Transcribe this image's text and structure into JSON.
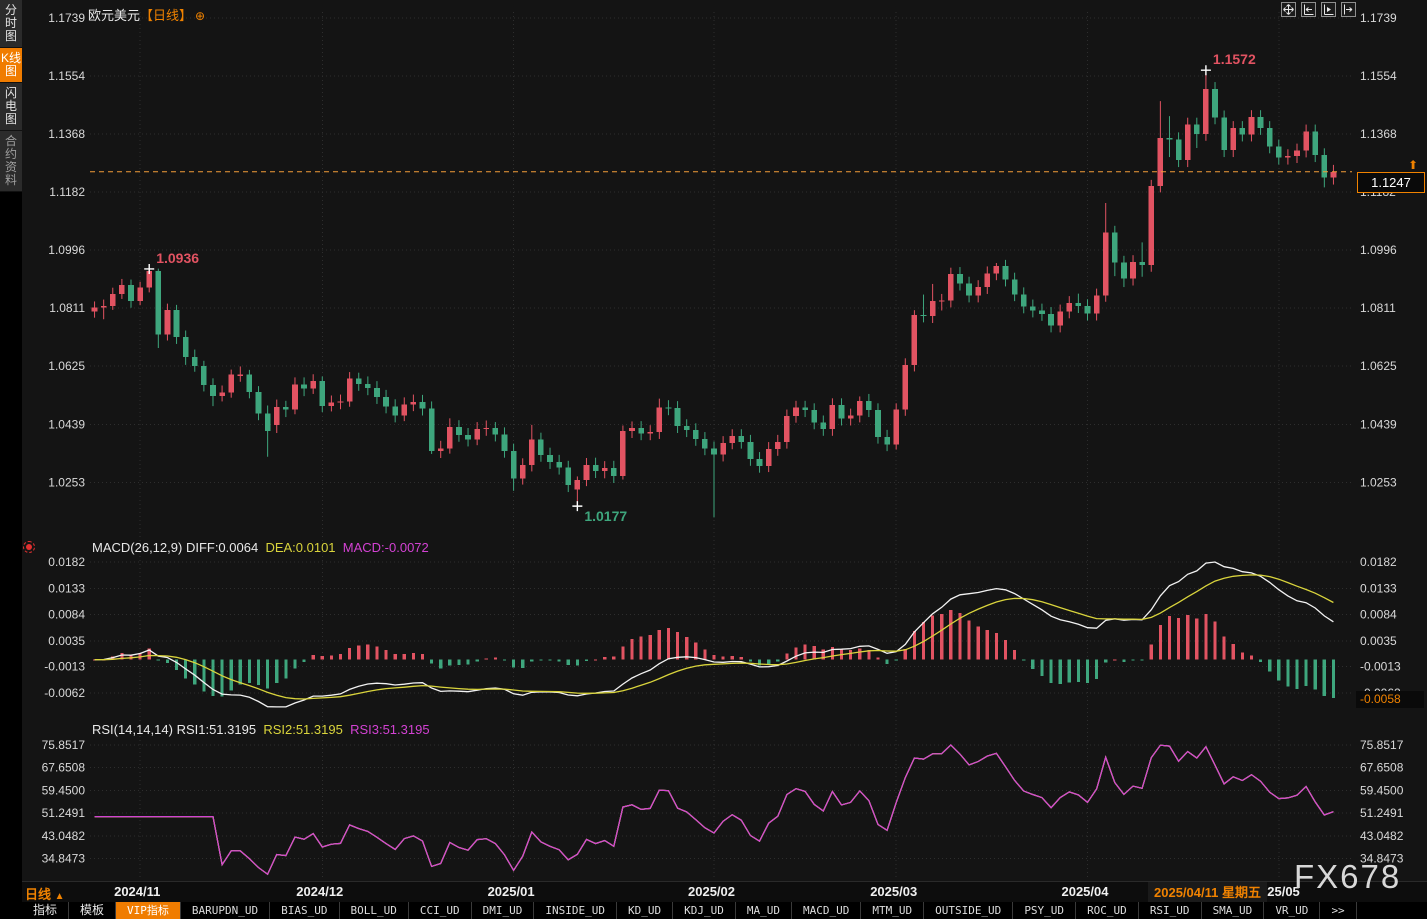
{
  "title": {
    "symbol": "欧元美元",
    "period_bracket": "【日线】",
    "icon_glyph": "⊕"
  },
  "sidebar": {
    "items": [
      {
        "label": "分时图",
        "selected": false
      },
      {
        "label": "K线图",
        "selected": true
      },
      {
        "label": "闪电图",
        "selected": false
      },
      {
        "label": "合约资料",
        "selected": false
      }
    ]
  },
  "top_icons": [
    "pan-crosshair-icon",
    "axis-compress-icon",
    "axis-cursor-icon",
    "axis-expand-icon"
  ],
  "price_box_value": "1.1247",
  "price_arrow_glyph": "⬆",
  "macd_box_value": "-0.0058",
  "watermark": "FX678",
  "bottom": {
    "period_label": "日线",
    "period_arrow": "▲",
    "highlight_date": "2025/04/11 星期五",
    "active_tab": "VIP指标",
    "tabs": [
      "指标",
      "模板",
      "VIP指标",
      "BARUPDN_UD",
      "BIAS_UD",
      "BOLL_UD",
      "CCI_UD",
      "DMI_UD",
      "INSIDE_UD",
      "KD_UD",
      "KDJ_UD",
      "MA_UD",
      "MACD_UD",
      "MTM_UD",
      "OUTSIDE_UD",
      "PSY_UD",
      "ROC_UD",
      "RSI_UD",
      "SMA_UD",
      "VR_UD",
      ">>"
    ]
  },
  "colors": {
    "up": "#e25362",
    "down": "#3ea67d",
    "accent": "#f08200",
    "price_line": "#f29b38",
    "diff_line": "#f2f2f2",
    "dea_line": "#d9d43c",
    "rsi_line": "#d342d3",
    "axis_text": "#d9d9d9",
    "grid": "#2e2e2e",
    "annotation_high": "#e25362",
    "annotation_low": "#3ea67d"
  },
  "chart_data": {
    "type": "candlestick",
    "symbol": "欧元美元",
    "period": "日线",
    "title": "欧元美元【日线】",
    "legend": {
      "macd_title": "MACD(26,12,9)",
      "macd_diff": "DIFF:0.0064",
      "macd_dea": "DEA:0.0101",
      "macd_macd": "MACD:-0.0072",
      "rsi_title": "RSI(14,14,14)",
      "rsi1": "RSI1:51.3195",
      "rsi2": "RSI2:51.3195",
      "rsi3": "RSI3:51.3195"
    },
    "price_axis_labels": [
      "1.1739",
      "1.1554",
      "1.1368",
      "1.1182",
      "1.0996",
      "1.0811",
      "1.0625",
      "1.0439",
      "1.0253"
    ],
    "macd_axis_labels": [
      "0.0182",
      "0.0133",
      "0.0084",
      "0.0035",
      "-0.0013",
      "-0.0062"
    ],
    "rsi_axis_labels": [
      "75.8517",
      "67.6508",
      "59.4500",
      "51.2491",
      "43.0482",
      "34.8473"
    ],
    "current_price": 1.1247,
    "last_macd_hist": -0.0058,
    "months": [
      {
        "label": "2024/11",
        "index": 5
      },
      {
        "label": "2024/12",
        "index": 25
      },
      {
        "label": "2025/01",
        "index": 46
      },
      {
        "label": "2025/02",
        "index": 68
      },
      {
        "label": "2025/03",
        "index": 88
      },
      {
        "label": "2025/04",
        "index": 109
      },
      {
        "label": "2025/05",
        "index": 130
      }
    ],
    "annotations": [
      {
        "index": 6,
        "price": 1.0936,
        "label": "1.0936",
        "type": "high"
      },
      {
        "index": 53,
        "price": 1.0177,
        "label": "1.0177",
        "type": "low"
      },
      {
        "index": 122,
        "price": 1.1572,
        "label": "1.1572",
        "type": "high"
      }
    ],
    "candles": [
      [
        1.08,
        1.0832,
        1.078,
        1.0812
      ],
      [
        1.0812,
        1.0838,
        1.0775,
        1.0818
      ],
      [
        1.0818,
        1.0876,
        1.0805,
        1.0856
      ],
      [
        1.0856,
        1.0904,
        1.084,
        1.0884
      ],
      [
        1.0884,
        1.0902,
        1.0812,
        1.0834
      ],
      [
        1.0834,
        1.0895,
        1.082,
        1.0877
      ],
      [
        1.0877,
        1.0936,
        1.0861,
        1.093
      ],
      [
        1.093,
        1.0937,
        1.0683,
        1.0727
      ],
      [
        1.0727,
        1.0825,
        1.0707,
        1.0804
      ],
      [
        1.0804,
        1.0821,
        1.0696,
        1.0718
      ],
      [
        1.0718,
        1.0739,
        1.0629,
        1.0655
      ],
      [
        1.0655,
        1.0678,
        1.0607,
        1.0625
      ],
      [
        1.0625,
        1.0642,
        1.0544,
        1.0564
      ],
      [
        1.0564,
        1.0586,
        1.0497,
        1.053
      ],
      [
        1.053,
        1.0563,
        1.0512,
        1.054
      ],
      [
        1.054,
        1.0614,
        1.0524,
        1.0598
      ],
      [
        1.0598,
        1.0624,
        1.0575,
        1.0598
      ],
      [
        1.0598,
        1.0613,
        1.0522,
        1.0543
      ],
      [
        1.0543,
        1.0561,
        1.0452,
        1.0474
      ],
      [
        1.0474,
        1.0499,
        1.0335,
        1.0417
      ],
      [
        1.0437,
        1.0518,
        1.0411,
        1.0495
      ],
      [
        1.0495,
        1.0514,
        1.0462,
        1.0487
      ],
      [
        1.0487,
        1.0589,
        1.0471,
        1.0566
      ],
      [
        1.0566,
        1.0589,
        1.0529,
        1.0553
      ],
      [
        1.0553,
        1.0599,
        1.0536,
        1.0577
      ],
      [
        1.0577,
        1.0592,
        1.0478,
        1.0498
      ],
      [
        1.0498,
        1.0531,
        1.048,
        1.0509
      ],
      [
        1.0509,
        1.0534,
        1.0487,
        1.0512
      ],
      [
        1.0512,
        1.0606,
        1.0495,
        1.0586
      ],
      [
        1.0586,
        1.0604,
        1.0546,
        1.0568
      ],
      [
        1.0568,
        1.0592,
        1.0532,
        1.0555
      ],
      [
        1.0555,
        1.0577,
        1.0504,
        1.0527
      ],
      [
        1.0527,
        1.0549,
        1.0474,
        1.0496
      ],
      [
        1.0496,
        1.0519,
        1.0445,
        1.0467
      ],
      [
        1.0467,
        1.0525,
        1.0449,
        1.0502
      ],
      [
        1.0502,
        1.0534,
        1.0481,
        1.0511
      ],
      [
        1.0511,
        1.0533,
        1.0467,
        1.0489
      ],
      [
        1.0489,
        1.0512,
        1.0344,
        1.0353
      ],
      [
        1.0353,
        1.0386,
        1.0331,
        1.0362
      ],
      [
        1.0362,
        1.0458,
        1.0345,
        1.043
      ],
      [
        1.043,
        1.0452,
        1.0383,
        1.0404
      ],
      [
        1.0404,
        1.0427,
        1.0368,
        1.039
      ],
      [
        1.039,
        1.0446,
        1.0372,
        1.0424
      ],
      [
        1.0424,
        1.0451,
        1.0402,
        1.0427
      ],
      [
        1.0427,
        1.0446,
        1.0384,
        1.0406
      ],
      [
        1.0406,
        1.0429,
        1.0332,
        1.0354
      ],
      [
        1.0354,
        1.0377,
        1.0226,
        1.0266
      ],
      [
        1.0266,
        1.033,
        1.0246,
        1.0308
      ],
      [
        1.0308,
        1.0437,
        1.0288,
        1.0391
      ],
      [
        1.0391,
        1.0412,
        1.0319,
        1.0341
      ],
      [
        1.0341,
        1.0364,
        1.0296,
        1.0318
      ],
      [
        1.0318,
        1.0341,
        1.0278,
        1.03
      ],
      [
        1.03,
        1.0322,
        1.0222,
        1.0244
      ],
      [
        1.023,
        1.0272,
        1.0177,
        1.0261
      ],
      [
        1.0261,
        1.0331,
        1.0241,
        1.0309
      ],
      [
        1.0309,
        1.0332,
        1.0267,
        1.0289
      ],
      [
        1.0289,
        1.0321,
        1.0266,
        1.0299
      ],
      [
        1.0299,
        1.0322,
        1.0251,
        1.0273
      ],
      [
        1.0273,
        1.0435,
        1.0262,
        1.0417
      ],
      [
        1.0417,
        1.0448,
        1.0395,
        1.0427
      ],
      [
        1.0427,
        1.0449,
        1.0388,
        1.041
      ],
      [
        1.041,
        1.0436,
        1.0388,
        1.0414
      ],
      [
        1.0414,
        1.0521,
        1.0392,
        1.0493
      ],
      [
        1.0493,
        1.0516,
        1.0468,
        1.0491
      ],
      [
        1.0491,
        1.0513,
        1.0411,
        1.0433
      ],
      [
        1.0433,
        1.0455,
        1.0398,
        1.042
      ],
      [
        1.042,
        1.0442,
        1.037,
        1.0392
      ],
      [
        1.0392,
        1.0414,
        1.034,
        1.0362
      ],
      [
        1.0362,
        1.0384,
        1.0141,
        1.0342
      ],
      [
        1.0342,
        1.0401,
        1.032,
        1.0379
      ],
      [
        1.0379,
        1.0423,
        1.0359,
        1.0401
      ],
      [
        1.0401,
        1.0423,
        1.0361,
        1.0383
      ],
      [
        1.0383,
        1.0405,
        1.0306,
        1.0328
      ],
      [
        1.0328,
        1.035,
        1.0284,
        1.0306
      ],
      [
        1.0306,
        1.0382,
        1.0286,
        1.036
      ],
      [
        1.036,
        1.0405,
        1.0338,
        1.0383
      ],
      [
        1.0383,
        1.0486,
        1.0361,
        1.0466
      ],
      [
        1.0466,
        1.0514,
        1.0444,
        1.0492
      ],
      [
        1.0492,
        1.0514,
        1.0462,
        1.0484
      ],
      [
        1.0484,
        1.0506,
        1.0423,
        1.0445
      ],
      [
        1.0445,
        1.0467,
        1.0402,
        1.0424
      ],
      [
        1.0424,
        1.0522,
        1.0402,
        1.05
      ],
      [
        1.05,
        1.0522,
        1.0435,
        1.0457
      ],
      [
        1.0457,
        1.0489,
        1.0435,
        1.0467
      ],
      [
        1.0467,
        1.0528,
        1.0445,
        1.0514
      ],
      [
        1.0514,
        1.0536,
        1.0462,
        1.0484
      ],
      [
        1.0484,
        1.0506,
        1.0377,
        1.0399
      ],
      [
        1.0399,
        1.0421,
        1.0353,
        1.0375
      ],
      [
        1.0375,
        1.0506,
        1.0358,
        1.0486
      ],
      [
        1.0486,
        1.065,
        1.0466,
        1.0628
      ],
      [
        1.0628,
        1.0804,
        1.0608,
        1.0789
      ],
      [
        1.0789,
        1.0854,
        1.0765,
        1.0785
      ],
      [
        1.0785,
        1.0888,
        1.0763,
        1.0834
      ],
      [
        1.0834,
        1.0856,
        1.0803,
        1.0835
      ],
      [
        1.0835,
        1.094,
        1.0813,
        1.092
      ],
      [
        1.092,
        1.0942,
        1.0867,
        1.0889
      ],
      [
        1.0889,
        1.0911,
        1.0829,
        1.0851
      ],
      [
        1.0851,
        1.09,
        1.0829,
        1.0878
      ],
      [
        1.0878,
        1.0944,
        1.0856,
        1.0922
      ],
      [
        1.0922,
        1.0955,
        1.09,
        1.0945
      ],
      [
        1.0945,
        1.0965,
        1.088,
        1.0902
      ],
      [
        1.0902,
        1.0924,
        1.0833,
        1.0855
      ],
      [
        1.0855,
        1.0877,
        1.0794,
        1.0816
      ],
      [
        1.0816,
        1.0838,
        1.0781,
        1.0803
      ],
      [
        1.0803,
        1.0825,
        1.077,
        1.0792
      ],
      [
        1.0792,
        1.0814,
        1.0733,
        1.0755
      ],
      [
        1.0755,
        1.0822,
        1.0733,
        1.08
      ],
      [
        1.08,
        1.0849,
        1.0778,
        1.0827
      ],
      [
        1.0827,
        1.0857,
        1.0795,
        1.0817
      ],
      [
        1.0817,
        1.0839,
        1.0771,
        1.0793
      ],
      [
        1.0793,
        1.0873,
        1.0771,
        1.0851
      ],
      [
        1.0851,
        1.1147,
        1.0831,
        1.1052
      ],
      [
        1.1052,
        1.1074,
        1.0913,
        1.0956
      ],
      [
        1.0956,
        1.0978,
        1.0878,
        1.0905
      ],
      [
        1.0905,
        1.098,
        1.0883,
        1.0958
      ],
      [
        1.0958,
        1.1021,
        1.0911,
        1.0949
      ],
      [
        1.0949,
        1.1221,
        1.0927,
        1.1201
      ],
      [
        1.1201,
        1.1473,
        1.1181,
        1.1355
      ],
      [
        1.1355,
        1.1425,
        1.1294,
        1.1351
      ],
      [
        1.1351,
        1.1373,
        1.1262,
        1.1284
      ],
      [
        1.1284,
        1.142,
        1.1262,
        1.1398
      ],
      [
        1.1398,
        1.142,
        1.1323,
        1.1368
      ],
      [
        1.1368,
        1.1572,
        1.1346,
        1.1512
      ],
      [
        1.1512,
        1.1534,
        1.1399,
        1.1421
      ],
      [
        1.1421,
        1.1443,
        1.1294,
        1.1316
      ],
      [
        1.1316,
        1.1409,
        1.1294,
        1.1387
      ],
      [
        1.1387,
        1.1409,
        1.1344,
        1.1366
      ],
      [
        1.1366,
        1.1444,
        1.1344,
        1.1422
      ],
      [
        1.1422,
        1.1444,
        1.1365,
        1.1387
      ],
      [
        1.1387,
        1.1409,
        1.1306,
        1.1328
      ],
      [
        1.1328,
        1.135,
        1.127,
        1.1292
      ],
      [
        1.1292,
        1.1319,
        1.127,
        1.1297
      ],
      [
        1.1297,
        1.1337,
        1.1275,
        1.1315
      ],
      [
        1.1315,
        1.1398,
        1.1293,
        1.1376
      ],
      [
        1.1376,
        1.1398,
        1.1278,
        1.13
      ],
      [
        1.13,
        1.1322,
        1.1197,
        1.1228
      ],
      [
        1.1228,
        1.1269,
        1.1206,
        1.1247
      ]
    ]
  }
}
